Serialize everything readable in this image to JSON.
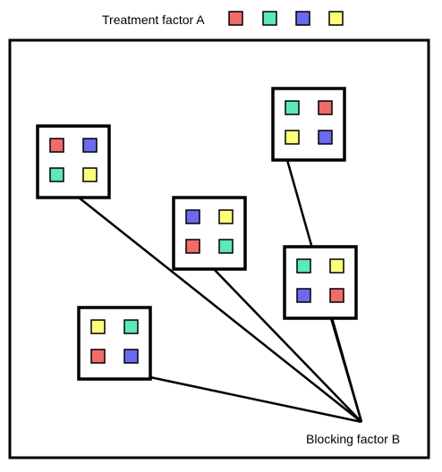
{
  "legend": {
    "label": "Treatment factor A",
    "swatches": [
      {
        "name": "treatment-red",
        "color": "#f26b6b"
      },
      {
        "name": "treatment-teal",
        "color": "#5ee8b8"
      },
      {
        "name": "treatment-blue",
        "color": "#6a6af0"
      },
      {
        "name": "treatment-yellow",
        "color": "#ffff7a"
      }
    ]
  },
  "blocking_label": "Blocking factor B",
  "blocks": [
    {
      "name": "block-1",
      "cells": [
        "treatment-red",
        "treatment-blue",
        "treatment-teal",
        "treatment-yellow"
      ]
    },
    {
      "name": "block-2",
      "cells": [
        "treatment-blue",
        "treatment-yellow",
        "treatment-red",
        "treatment-teal"
      ]
    },
    {
      "name": "block-3",
      "cells": [
        "treatment-teal",
        "treatment-red",
        "treatment-yellow",
        "treatment-blue"
      ]
    },
    {
      "name": "block-4",
      "cells": [
        "treatment-teal",
        "treatment-yellow",
        "treatment-blue",
        "treatment-red"
      ]
    },
    {
      "name": "block-5",
      "cells": [
        "treatment-yellow",
        "treatment-teal",
        "treatment-red",
        "treatment-blue"
      ]
    }
  ]
}
